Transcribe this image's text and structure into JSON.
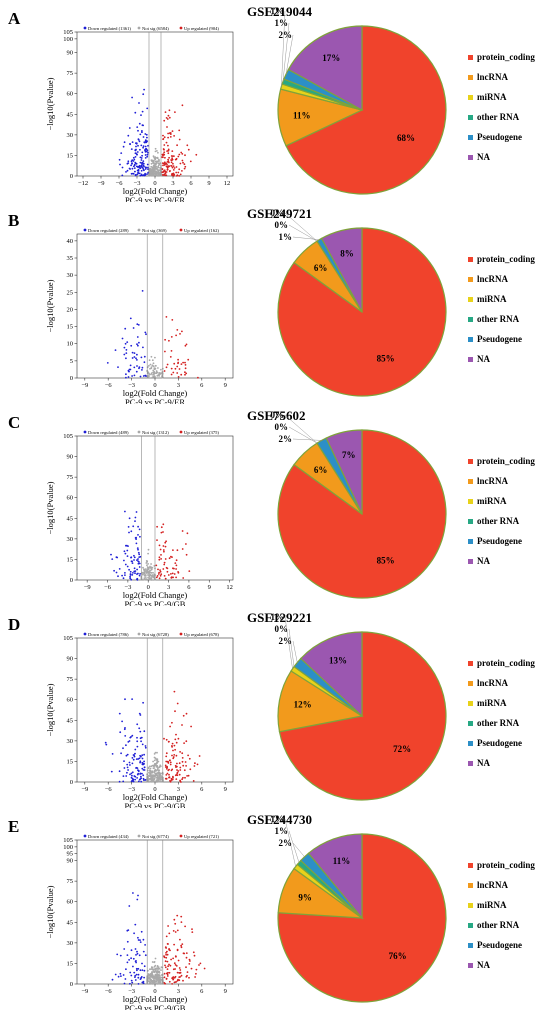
{
  "colors": {
    "down": "#1f1fd6",
    "notsig": "#a9a9a9",
    "up": "#d42020",
    "protein_coding": "#f0432c",
    "lncRNA": "#f29a1c",
    "miRNA": "#e8d21a",
    "other_RNA": "#27a884",
    "Pseudogene": "#2c8fc7",
    "NA": "#9b57b0",
    "pie_edge": "#7fa33a"
  },
  "legend_labels": [
    "protein_coding",
    "lncRNA",
    "miRNA",
    "other RNA",
    "Pseudogene",
    "NA"
  ],
  "y_axis_label": "−log10(Pvalue)",
  "chart_data": [
    {
      "panel": "A",
      "dataset": "GSE219044",
      "volcano": {
        "type": "scatter",
        "legend": [
          "Down regulated (1361)",
          "Not sig (6584)",
          "Up regulated (904)"
        ],
        "xlabel": "log2(Fold Change)",
        "subtitle": "PC-9 vs PC-9/ER",
        "xticks": [
          -12,
          -9,
          -6,
          -3,
          0,
          3,
          6,
          9,
          12
        ],
        "xlim": [
          -13,
          13
        ],
        "yticks": [
          0,
          15,
          30,
          45,
          60,
          75,
          90,
          100,
          105
        ],
        "ylim": [
          0,
          105
        ],
        "thresholds": [
          -1,
          1
        ],
        "counts": {
          "down": 1361,
          "notsig": 6584,
          "up": 904
        }
      },
      "pie": {
        "type": "pie",
        "values": [
          68,
          11,
          1,
          1,
          2,
          17
        ],
        "labels": [
          "68%",
          "11%",
          "1%",
          "1%",
          "2%",
          "17%"
        ]
      }
    },
    {
      "panel": "B",
      "dataset": "GSE249721",
      "volcano": {
        "type": "scatter",
        "legend": [
          "Down regulated (289)",
          "Not sig (369)",
          "Up regulated (162)"
        ],
        "xlabel": "log2(Fold Change)",
        "subtitle": "PC-9 vs PC-9/ER",
        "xticks": [
          -9,
          -6,
          -3,
          0,
          3,
          6,
          9
        ],
        "xlim": [
          -10,
          10
        ],
        "yticks": [
          0,
          5,
          10,
          15,
          20,
          25,
          30,
          35,
          40
        ],
        "ylim": [
          0,
          42
        ],
        "thresholds": [
          -1,
          1
        ],
        "counts": {
          "down": 289,
          "notsig": 369,
          "up": 162
        }
      },
      "pie": {
        "type": "pie",
        "values": [
          85,
          6,
          0,
          0,
          1,
          8
        ],
        "labels": [
          "85%",
          "6%",
          "0%",
          "0%",
          "1%",
          "8%"
        ]
      }
    },
    {
      "panel": "C",
      "dataset": "GSE75602",
      "volcano": {
        "type": "scatter",
        "legend": [
          "Down regulated (489)",
          "Not sig (1312)",
          "Up regulated (375)"
        ],
        "xlabel": "log2(Fold Change)",
        "subtitle": "PC-9 vs PC-9/GB",
        "xticks": [
          -9,
          -6,
          -3,
          0,
          3,
          6,
          9,
          12
        ],
        "xlim": [
          -10.5,
          12.5
        ],
        "yticks": [
          0,
          15,
          30,
          45,
          60,
          75,
          90,
          105
        ],
        "ylim": [
          0,
          105
        ],
        "thresholds": [
          -1,
          1
        ],
        "counts": {
          "down": 489,
          "notsig": 1312,
          "up": 375
        }
      },
      "pie": {
        "type": "pie",
        "values": [
          85,
          6,
          0,
          0,
          2,
          7
        ],
        "labels": [
          "85%",
          "6%",
          "0%",
          "0%",
          "2%",
          "7%"
        ]
      }
    },
    {
      "panel": "D",
      "dataset": "GSE129221",
      "volcano": {
        "type": "scatter",
        "legend": [
          "Down regulated (786)",
          "Not sig (6728)",
          "Up regulated (678)"
        ],
        "xlabel": "log2(Fold Change)",
        "subtitle": "PC-9 vs PC-9/GB",
        "xticks": [
          -9,
          -6,
          -3,
          0,
          3,
          6,
          9
        ],
        "xlim": [
          -10,
          10
        ],
        "yticks": [
          0,
          15,
          30,
          45,
          60,
          75,
          90,
          105
        ],
        "ylim": [
          0,
          105
        ],
        "thresholds": [
          -1,
          1
        ],
        "counts": {
          "down": 786,
          "notsig": 6728,
          "up": 678
        }
      },
      "pie": {
        "type": "pie",
        "values": [
          72,
          12,
          1,
          0,
          2,
          13
        ],
        "labels": [
          "72%",
          "12%",
          "1%",
          "0%",
          "2%",
          "13%"
        ]
      }
    },
    {
      "panel": "E",
      "dataset": "GSE244730",
      "volcano": {
        "type": "scatter",
        "legend": [
          "Down regulated (434)",
          "Not sig (6774)",
          "Up regulated (721)"
        ],
        "xlabel": "log2(Fold Change)",
        "subtitle": "PC-9 vs PC-9/GB",
        "xticks": [
          -9,
          -6,
          -3,
          0,
          3,
          6,
          9
        ],
        "xlim": [
          -10,
          10
        ],
        "yticks": [
          0,
          15,
          30,
          45,
          60,
          75,
          90,
          95,
          100,
          105
        ],
        "ylim": [
          0,
          105
        ],
        "thresholds": [
          -1,
          1
        ],
        "counts": {
          "down": 434,
          "notsig": 6774,
          "up": 721
        }
      },
      "pie": {
        "type": "pie",
        "values": [
          76,
          9,
          1,
          1,
          2,
          11
        ],
        "labels": [
          "76%",
          "9%",
          "1%",
          "1%",
          "2%",
          "11%"
        ]
      }
    }
  ]
}
